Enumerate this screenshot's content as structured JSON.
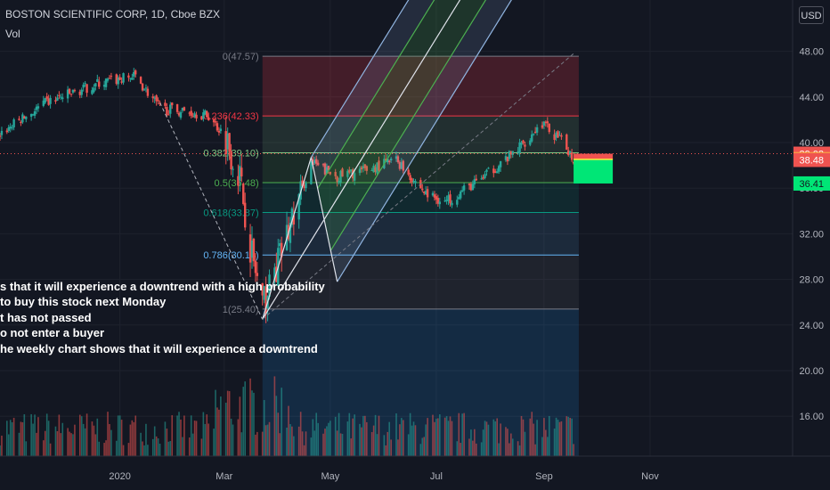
{
  "header": {
    "symbol": "BOSTON SCIENTIFIC CORP, 1D, Cboe BZX",
    "indicator": "Vol",
    "currency": "USD"
  },
  "notes": [
    "s that it will experience a downtrend with a high probability",
    "to buy this stock next Monday",
    "t has not passed",
    "o not enter a buyer",
    "he weekly chart shows that it will experience a downtrend"
  ],
  "colors": {
    "background": "#131722",
    "up": "#26a69a",
    "down": "#ef5350",
    "channel_outer": "#90b4e0",
    "channel_inner": "#4caf50",
    "channel_mid": "#e0e3eb"
  },
  "chart_data": {
    "type": "candlestick",
    "y_axis": {
      "range": [
        12.5,
        52.5
      ],
      "ticks": [
        16.0,
        20.0,
        24.0,
        28.0,
        32.0,
        36.0,
        40.0,
        44.0,
        48.0
      ]
    },
    "x_axis": {
      "range": [
        "2019-10-24",
        "2021-01-22"
      ],
      "ticks": [
        "2020",
        "Mar",
        "May",
        "Jul",
        "Sep",
        "Nov"
      ]
    },
    "price_labels": [
      {
        "value": "39.02",
        "color": "#ef5350",
        "text_color": "#ffffff"
      },
      {
        "value": "38.53",
        "color": "#ffeb3b",
        "text_color": "#131722"
      },
      {
        "value": "38.48",
        "color": "#ef5350",
        "text_color": "#ffffff"
      },
      {
        "value": "36.41",
        "color": "#00e676",
        "text_color": "#131722"
      }
    ],
    "fibonacci": {
      "levels": [
        {
          "ratio": "0",
          "price": "47.57",
          "label": "0(47.57)",
          "color": "#787b86"
        },
        {
          "ratio": "0.236",
          "price": "42.33",
          "label": "0.236(42.33)",
          "color": "#f23645"
        },
        {
          "ratio": "0.382",
          "price": "39.10",
          "label": "0.382(39.10)",
          "color": "#81c784"
        },
        {
          "ratio": "0.5",
          "price": "36.48",
          "label": "0.5(36.48)",
          "color": "#4caf50"
        },
        {
          "ratio": "0.618",
          "price": "33.87",
          "label": "0.618(33.87)",
          "color": "#089981"
        },
        {
          "ratio": "0.786",
          "price": "30.14",
          "label": "0.786(30.14)",
          "color": "#64b5f6"
        },
        {
          "ratio": "1",
          "price": "25.40",
          "label": "1(25.40)",
          "color": "#787b86"
        }
      ]
    },
    "pitchfork": {
      "handle": {
        "date": "2020-03-23",
        "price": 24.5
      },
      "point_a": {
        "date": "2020-04-20",
        "price": 38.7
      },
      "point_b": {
        "date": "2020-05-05",
        "price": 27.8
      }
    },
    "price_series_anchors": [
      [
        "2019-10-24",
        40.8
      ],
      [
        "2019-11-20",
        43.5
      ],
      [
        "2019-12-20",
        45.2
      ],
      [
        "2020-01-10",
        45.8
      ],
      [
        "2020-01-24",
        43.0
      ],
      [
        "2020-02-14",
        42.6
      ],
      [
        "2020-02-21",
        42.3
      ],
      [
        "2020-03-02",
        40.5
      ],
      [
        "2020-03-10",
        37.0
      ],
      [
        "2020-03-16",
        31.0
      ],
      [
        "2020-03-23",
        25.5
      ],
      [
        "2020-04-01",
        29.5
      ],
      [
        "2020-04-20",
        38.2
      ],
      [
        "2020-05-05",
        37.0
      ],
      [
        "2020-05-20",
        37.5
      ],
      [
        "2020-06-08",
        38.5
      ],
      [
        "2020-06-25",
        35.5
      ],
      [
        "2020-07-06",
        34.8
      ],
      [
        "2020-07-24",
        36.5
      ],
      [
        "2020-08-14",
        39.0
      ],
      [
        "2020-08-31",
        41.7
      ],
      [
        "2020-09-14",
        39.6
      ],
      [
        "2020-09-18",
        38.5
      ]
    ]
  }
}
